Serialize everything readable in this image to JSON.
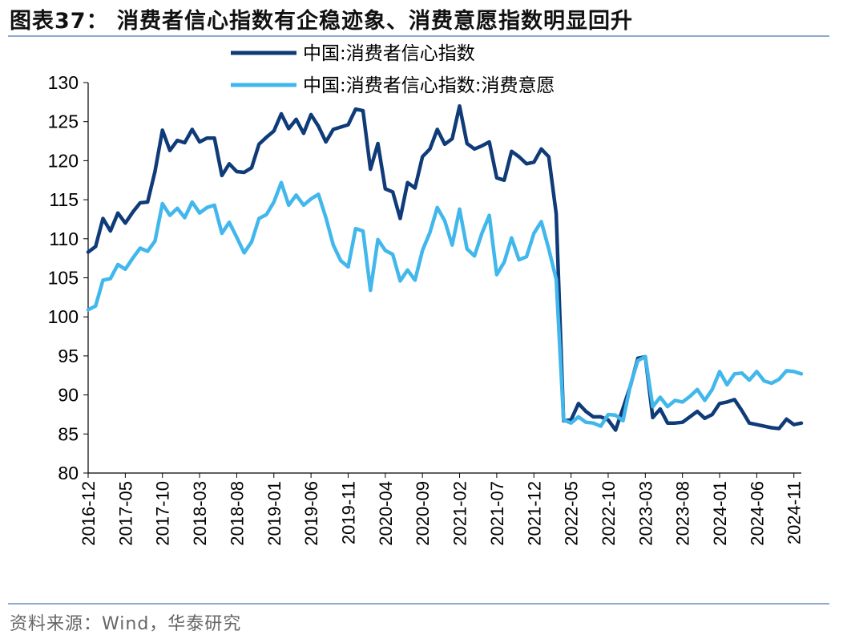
{
  "header": {
    "title": "图表37：  消费者信心指数有企稳迹象、消费意愿指数明显回升"
  },
  "footer": {
    "source": "资料来源：Wind，华泰研究"
  },
  "chart_data": {
    "type": "line",
    "title": "图表37：  消费者信心指数有企稳迹象、消费意愿指数明显回升",
    "xlabel": "",
    "ylabel": "",
    "ylim": [
      80,
      130
    ],
    "yticks": [
      80,
      85,
      90,
      95,
      100,
      105,
      110,
      115,
      120,
      125,
      130
    ],
    "xtick_labels": [
      "2016-12",
      "2017-05",
      "2017-10",
      "2018-03",
      "2018-08",
      "2019-01",
      "2019-06",
      "2019-11",
      "2020-04",
      "2020-09",
      "2021-02",
      "2021-07",
      "2021-12",
      "2022-05",
      "2022-10",
      "2023-03",
      "2023-08",
      "2024-01",
      "2024-06",
      "2024-11"
    ],
    "x_start": "2016-12",
    "x_end": "2024-12",
    "legend_position": "top-center",
    "grid": false,
    "series": [
      {
        "name": "中国:消费者信心指数",
        "color": "#0f3b78",
        "values": [
          108.3,
          109.0,
          112.6,
          111.0,
          113.3,
          112.0,
          113.4,
          114.6,
          114.7,
          118.6,
          123.9,
          121.3,
          122.6,
          122.3,
          124.0,
          122.4,
          122.9,
          122.9,
          118.1,
          119.6,
          118.6,
          118.5,
          119.1,
          122.1,
          123.0,
          123.8,
          126.0,
          124.1,
          125.3,
          123.5,
          125.9,
          124.4,
          122.4,
          124.0,
          124.3,
          124.6,
          126.6,
          126.4,
          118.9,
          122.2,
          116.4,
          116.0,
          112.6,
          117.2,
          116.5,
          120.5,
          121.5,
          124.0,
          122.1,
          122.8,
          127.0,
          122.2,
          121.5,
          121.9,
          122.4,
          117.8,
          117.5,
          121.2,
          120.5,
          119.6,
          119.8,
          121.5,
          120.5,
          113.2,
          86.7,
          86.8,
          88.9,
          87.9,
          87.2,
          87.2,
          86.8,
          85.5,
          88.3,
          91.2,
          94.7,
          94.9,
          87.1,
          88.2,
          86.4,
          86.4,
          86.5,
          87.2,
          87.9,
          87.0,
          87.5,
          88.9,
          89.1,
          89.4,
          88.0,
          86.4,
          86.2,
          86.0,
          85.8,
          85.7,
          86.9,
          86.2,
          86.4
        ]
      },
      {
        "name": "中国:消费者信心指数:消费意愿",
        "color": "#41b7ec",
        "values": [
          100.9,
          101.4,
          104.7,
          104.9,
          106.7,
          106.1,
          107.5,
          108.8,
          108.4,
          109.7,
          114.5,
          113.0,
          113.9,
          112.7,
          114.7,
          113.3,
          114.0,
          114.3,
          110.7,
          112.1,
          110.2,
          108.2,
          109.6,
          112.6,
          113.1,
          114.7,
          117.2,
          114.3,
          115.6,
          114.3,
          115.1,
          115.7,
          112.7,
          109.2,
          107.2,
          106.4,
          111.3,
          111.0,
          103.4,
          109.9,
          108.5,
          108.0,
          104.6,
          106.0,
          104.7,
          108.5,
          110.8,
          114.0,
          112.3,
          109.2,
          113.8,
          108.7,
          107.8,
          110.7,
          113.0,
          105.4,
          107.0,
          110.1,
          107.3,
          107.7,
          110.7,
          112.2,
          108.7,
          104.8,
          86.8,
          86.4,
          87.2,
          86.5,
          86.4,
          86.0,
          87.5,
          87.4,
          86.7,
          91.3,
          94.4,
          94.9,
          88.5,
          89.7,
          88.5,
          89.3,
          89.1,
          89.8,
          90.7,
          89.3,
          90.7,
          93.0,
          91.3,
          92.7,
          92.8,
          91.9,
          93.0,
          91.8,
          91.5,
          92.0,
          93.1,
          93.0,
          92.7
        ]
      }
    ]
  }
}
